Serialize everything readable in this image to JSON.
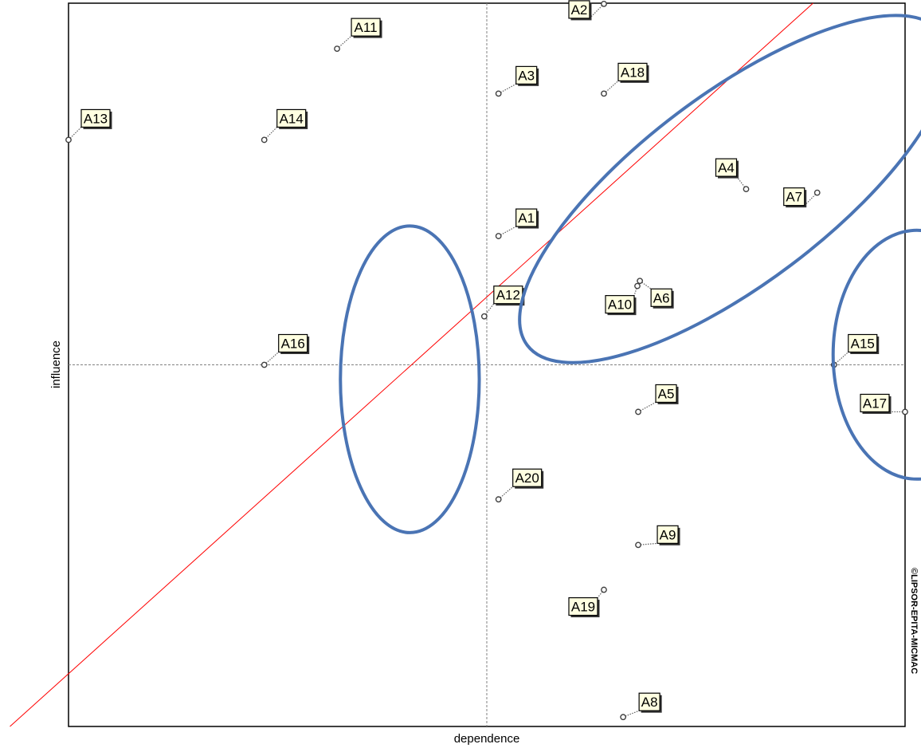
{
  "chart_data": {
    "type": "scatter",
    "title": "",
    "xlabel": "dependence",
    "ylabel": "influence",
    "copyright": "©LIPSOR-EPITA-MICMAC",
    "xlim": [
      0,
      100
    ],
    "ylim": [
      0,
      100
    ],
    "grid": false,
    "quadrant_lines": {
      "x": 50,
      "y": 50
    },
    "diagonal": [
      [
        -7,
        0
      ],
      [
        89,
        100
      ]
    ],
    "points": [
      {
        "label": "A1",
        "x": 51.4,
        "y": 67.8
      },
      {
        "label": "A2",
        "x": 64.0,
        "y": 99.9
      },
      {
        "label": "A3",
        "x": 51.4,
        "y": 87.5
      },
      {
        "label": "A4",
        "x": 81.0,
        "y": 74.3
      },
      {
        "label": "A5",
        "x": 68.1,
        "y": 43.5
      },
      {
        "label": "A6",
        "x": 68.3,
        "y": 61.6
      },
      {
        "label": "A7",
        "x": 89.5,
        "y": 73.8
      },
      {
        "label": "A8",
        "x": 66.3,
        "y": 1.3
      },
      {
        "label": "A9",
        "x": 68.1,
        "y": 25.1
      },
      {
        "label": "A10",
        "x": 68.0,
        "y": 60.9
      },
      {
        "label": "A11",
        "x": 32.1,
        "y": 93.7
      },
      {
        "label": "A12",
        "x": 49.7,
        "y": 56.7
      },
      {
        "label": "A13",
        "x": 0.0,
        "y": 81.1
      },
      {
        "label": "A14",
        "x": 23.4,
        "y": 81.1
      },
      {
        "label": "A15",
        "x": 91.5,
        "y": 50.0
      },
      {
        "label": "A16",
        "x": 23.4,
        "y": 50.0
      },
      {
        "label": "A17",
        "x": 100.0,
        "y": 43.5
      },
      {
        "label": "A18",
        "x": 64.0,
        "y": 87.5
      },
      {
        "label": "A19",
        "x": 64.0,
        "y": 18.9
      },
      {
        "label": "A20",
        "x": 51.4,
        "y": 31.4
      }
    ],
    "annotations": [
      {
        "type": "ellipse",
        "cx": 79.6,
        "cy": 74.3,
        "rx": 31.0,
        "ry": 13.1,
        "rotation": -37
      },
      {
        "type": "ellipse",
        "cx": 40.8,
        "cy": 48.0,
        "rx": 8.3,
        "ry": 21.2,
        "rotation": 0
      },
      {
        "type": "ellipse",
        "cx": 101.4,
        "cy": 51.4,
        "rx": 10.0,
        "ry": 17.2,
        "rotation": 0
      }
    ],
    "colors": {
      "frame": "#000000",
      "quadrant": "#808080",
      "diagonal": "#ff0000",
      "annotation": "#4a74b4",
      "label_bg": "#ffffe1",
      "point": "#404040"
    }
  }
}
